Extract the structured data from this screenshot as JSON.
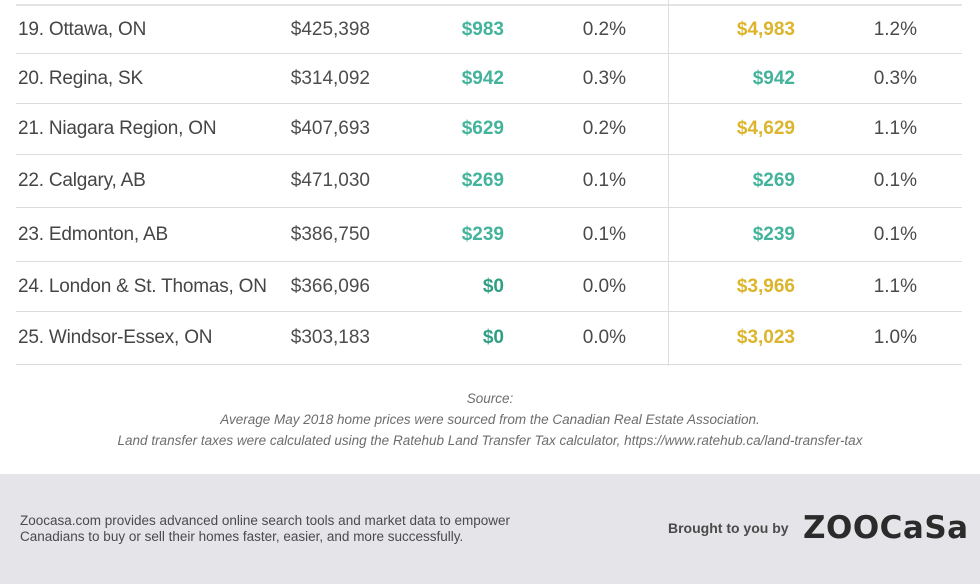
{
  "rows": [
    {
      "city": "19. Ottawa, ON",
      "price": "$425,398",
      "tax1": "$983",
      "tax1_color": "#43b39b",
      "pct1": "0.2%",
      "tax2": "$4,983",
      "tax2_color": "#dcb52c",
      "pct2": "1.2%"
    },
    {
      "city": "20. Regina, SK",
      "price": "$314,092",
      "tax1": "$942",
      "tax1_color": "#43b39b",
      "pct1": "0.3%",
      "tax2": "$942",
      "tax2_color": "#43b39b",
      "pct2": "0.3%"
    },
    {
      "city": "21. Niagara Region, ON",
      "price": "$407,693",
      "tax1": "$629",
      "tax1_color": "#43b39b",
      "pct1": "0.2%",
      "tax2": "$4,629",
      "tax2_color": "#dcb52c",
      "pct2": "1.1%"
    },
    {
      "city": "22. Calgary, AB",
      "price": "$471,030",
      "tax1": "$269",
      "tax1_color": "#43b39b",
      "pct1": "0.1%",
      "tax2": "$269",
      "tax2_color": "#43b39b",
      "pct2": "0.1%"
    },
    {
      "city": "23. Edmonton, AB",
      "price": "$386,750",
      "tax1": "$239",
      "tax1_color": "#43b39b",
      "pct1": "0.1%",
      "tax2": "$239",
      "tax2_color": "#43b39b",
      "pct2": "0.1%"
    },
    {
      "city": "24. London & St. Thomas, ON",
      "price": "$366,096",
      "tax1": "$0",
      "tax1_color": "#2f9f83",
      "pct1": "0.0%",
      "tax2": "$3,966",
      "tax2_color": "#dcb52c",
      "pct2": "1.1%"
    },
    {
      "city": "25. Windsor-Essex, ON",
      "price": "$303,183",
      "tax1": "$0",
      "tax1_color": "#2f9f83",
      "pct1": "0.0%",
      "tax2": "$3,023",
      "tax2_color": "#dcb52c",
      "pct2": "1.0%"
    }
  ],
  "source": {
    "heading": "Source:",
    "line1": "Average May 2018 home prices were sourced from the Canadian Real Estate Association.",
    "line2": "Land transfer taxes were calculated using the Ratehub Land Transfer Tax calculator, https://www.ratehub.ca/land-transfer-tax"
  },
  "footer": {
    "line1": "Zoocasa.com provides advanced online search tools and market data to empower",
    "line2": "Canadians to buy or sell their homes faster, easier, and more successfully.",
    "brought_by": "Brought to you by",
    "logo_text": "ZOOCaSa"
  }
}
